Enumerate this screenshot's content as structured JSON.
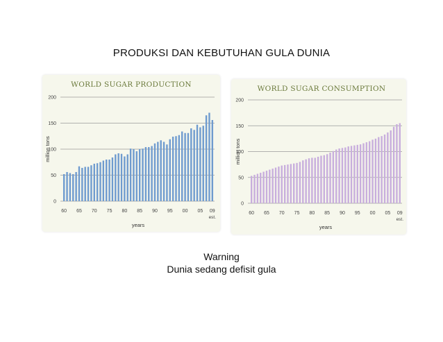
{
  "slide": {
    "title": "PRODUKSI DAN KEBUTUHAN GULA DUNIA",
    "warning_line1": "Warning",
    "warning_line2": "Dunia sedang defisit gula"
  },
  "colors": {
    "production_bars": "#6f9bcf",
    "consumption_bars": "#c8aedd",
    "chart_title": "#6b7a3c",
    "panel_bg": "#f6f7ec",
    "grid": "#9a9a9a"
  },
  "chart_data": [
    {
      "type": "bar",
      "title": "WORLD SUGAR PRODUCTION",
      "xlabel": "years",
      "ylabel": "million tons",
      "ylim": [
        0,
        200
      ],
      "yticks": [
        0,
        50,
        100,
        150,
        200
      ],
      "x_tick_labels": [
        "60",
        "65",
        "70",
        "75",
        "80",
        "85",
        "90",
        "95",
        "00",
        "05",
        "09"
      ],
      "x_tick_sub": "est.",
      "grid": "horizontal",
      "categories": [
        "1960",
        "1961",
        "1962",
        "1963",
        "1964",
        "1965",
        "1966",
        "1967",
        "1968",
        "1969",
        "1970",
        "1971",
        "1972",
        "1973",
        "1974",
        "1975",
        "1976",
        "1977",
        "1978",
        "1979",
        "1980",
        "1981",
        "1982",
        "1983",
        "1984",
        "1985",
        "1986",
        "1987",
        "1988",
        "1989",
        "1990",
        "1991",
        "1992",
        "1993",
        "1994",
        "1995",
        "1996",
        "1997",
        "1998",
        "1999",
        "2000",
        "2001",
        "2002",
        "2003",
        "2004",
        "2005",
        "2006",
        "2007",
        "2008",
        "2009"
      ],
      "values": [
        52,
        56,
        54,
        52,
        56,
        67,
        64,
        66,
        66,
        69,
        72,
        73,
        75,
        78,
        80,
        80,
        84,
        90,
        92,
        91,
        86,
        90,
        101,
        100,
        96,
        100,
        101,
        104,
        104,
        106,
        111,
        114,
        117,
        114,
        109,
        119,
        124,
        125,
        127,
        134,
        131,
        131,
        140,
        137,
        147,
        142,
        145,
        165,
        170,
        156
      ]
    },
    {
      "type": "bar",
      "title": "WORLD SUGAR CONSUMPTION",
      "xlabel": "years",
      "ylabel": "million tons",
      "ylim": [
        0,
        200
      ],
      "yticks": [
        0,
        50,
        100,
        150,
        200
      ],
      "x_tick_labels": [
        "60",
        "65",
        "70",
        "75",
        "80",
        "85",
        "90",
        "95",
        "00",
        "05",
        "09"
      ],
      "x_tick_sub": "est.",
      "grid": "horizontal",
      "categories": [
        "1960",
        "1961",
        "1962",
        "1963",
        "1964",
        "1965",
        "1966",
        "1967",
        "1968",
        "1969",
        "1970",
        "1971",
        "1972",
        "1973",
        "1974",
        "1975",
        "1976",
        "1977",
        "1978",
        "1979",
        "1980",
        "1981",
        "1982",
        "1983",
        "1984",
        "1985",
        "1986",
        "1987",
        "1988",
        "1989",
        "1990",
        "1991",
        "1992",
        "1993",
        "1994",
        "1995",
        "1996",
        "1997",
        "1998",
        "1999",
        "2000",
        "2001",
        "2002",
        "2003",
        "2004",
        "2005",
        "2006",
        "2007",
        "2008",
        "2009"
      ],
      "values": [
        53,
        55,
        57,
        59,
        61,
        63,
        65,
        67,
        69,
        71,
        73,
        74,
        75,
        76,
        77,
        78,
        80,
        83,
        85,
        87,
        88,
        88,
        90,
        92,
        93,
        95,
        98,
        101,
        104,
        106,
        107,
        108,
        110,
        111,
        112,
        113,
        114,
        116,
        118,
        120,
        123,
        125,
        128,
        130,
        133,
        137,
        141,
        148,
        153,
        155
      ]
    }
  ]
}
